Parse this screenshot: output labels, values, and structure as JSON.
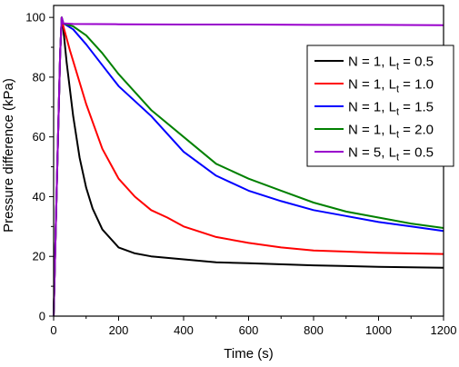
{
  "chart_data": {
    "type": "line",
    "title": "",
    "xlabel": "Time (s)",
    "ylabel": "Pressure difference (kPa)",
    "xlim": [
      0,
      1200
    ],
    "ylim": [
      0,
      104
    ],
    "xticks": [
      0,
      200,
      400,
      600,
      800,
      1000,
      1200
    ],
    "yticks": [
      0,
      20,
      40,
      60,
      80,
      100
    ],
    "grid": false,
    "legend_position": "top-right",
    "series": [
      {
        "name": "N = 1, L<sub>t</sub> = 0.5",
        "legend": {
          "prefix": "N = 1, L",
          "sub": "t",
          "suffix": " = 0.5"
        },
        "color": "#000000",
        "x": [
          0,
          10,
          20,
          25,
          30,
          40,
          60,
          80,
          100,
          120,
          150,
          200,
          250,
          300,
          400,
          500,
          600,
          800,
          1000,
          1200
        ],
        "y": [
          0,
          45,
          88,
          100,
          96,
          85,
          67,
          53,
          43,
          36,
          29,
          23,
          21,
          20,
          19,
          18,
          17.7,
          17.0,
          16.5,
          16.2
        ]
      },
      {
        "name": "N = 1, L<sub>t</sub> = 1.0",
        "legend": {
          "prefix": "N = 1, L",
          "sub": "t",
          "suffix": " = 1.0"
        },
        "color": "#ff0000",
        "x": [
          0,
          10,
          20,
          25,
          30,
          50,
          100,
          150,
          200,
          250,
          300,
          350,
          400,
          500,
          600,
          700,
          800,
          1000,
          1200
        ],
        "y": [
          0,
          45,
          88,
          100,
          97,
          89,
          71,
          56,
          46,
          40,
          35.5,
          33,
          30,
          26.5,
          24.5,
          23,
          22,
          21.2,
          20.8
        ]
      },
      {
        "name": "N = 1, L<sub>t</sub> = 1.5",
        "legend": {
          "prefix": "N = 1, L",
          "sub": "t",
          "suffix": " = 1.5"
        },
        "color": "#0000ff",
        "x": [
          0,
          10,
          20,
          25,
          30,
          60,
          100,
          150,
          200,
          300,
          400,
          500,
          600,
          700,
          800,
          900,
          1000,
          1100,
          1200
        ],
        "y": [
          0,
          45,
          88,
          100,
          98,
          96,
          91,
          84,
          77,
          67,
          55,
          47,
          42,
          38.5,
          35.5,
          33.5,
          31.5,
          30,
          28.5
        ]
      },
      {
        "name": "N = 1, L<sub>t</sub> = 2.0",
        "legend": {
          "prefix": "N = 1, L",
          "sub": "t",
          "suffix": " = 2.0"
        },
        "color": "#008000",
        "x": [
          0,
          10,
          20,
          25,
          30,
          60,
          100,
          150,
          200,
          300,
          400,
          500,
          600,
          700,
          800,
          900,
          1000,
          1100,
          1200
        ],
        "y": [
          0,
          45,
          88,
          100,
          98,
          97,
          94,
          88,
          81,
          69,
          60,
          51,
          46,
          42,
          38,
          35,
          33,
          31,
          29.5
        ]
      },
      {
        "name": "N = 5, L<sub>t</sub> = 0.5",
        "legend": {
          "prefix": "N = 5, L",
          "sub": "t",
          "suffix": " = 0.5"
        },
        "color": "#9900cc",
        "x": [
          0,
          10,
          20,
          25,
          30,
          60,
          200,
          400,
          600,
          800,
          1000,
          1200
        ],
        "y": [
          0,
          45,
          88,
          100,
          98,
          97.8,
          97.7,
          97.6,
          97.6,
          97.5,
          97.5,
          97.4
        ]
      }
    ]
  }
}
